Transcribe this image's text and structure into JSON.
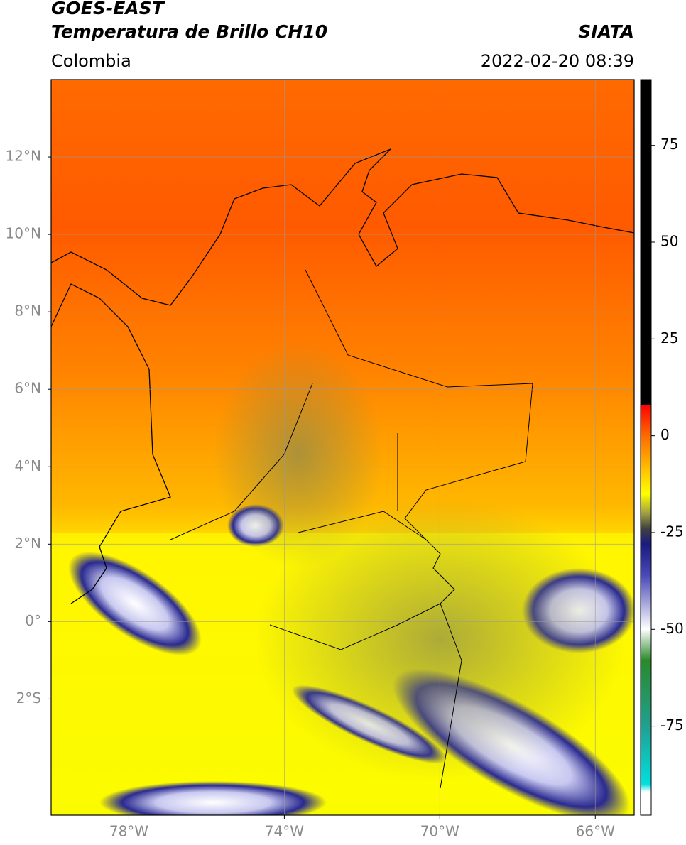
{
  "header": {
    "title": "GOES-EAST",
    "subtitle": "Temperatura de Brillo CH10",
    "source": "SIATA",
    "region": "Colombia",
    "datetime": "2022-02-20 08:39"
  },
  "map": {
    "lonlim": [
      -80,
      -65
    ],
    "latlim": [
      -5,
      14
    ],
    "xticks": [
      {
        "value": -78,
        "label": "78°W"
      },
      {
        "value": -74,
        "label": "74°W"
      },
      {
        "value": -70,
        "label": "70°W"
      },
      {
        "value": -66,
        "label": "66°W"
      }
    ],
    "yticks": [
      {
        "value": 12,
        "label": "12°N"
      },
      {
        "value": 10,
        "label": "10°N"
      },
      {
        "value": 8,
        "label": "8°N"
      },
      {
        "value": 6,
        "label": "6°N"
      },
      {
        "value": 4,
        "label": "4°N"
      },
      {
        "value": 2,
        "label": "2°N"
      },
      {
        "value": 0,
        "label": "0°"
      },
      {
        "value": -2,
        "label": "2°S"
      }
    ],
    "grid": true
  },
  "colorbar": {
    "lim": [
      -98,
      92
    ],
    "ticks": [
      75,
      50,
      25,
      0,
      -25,
      -50,
      -75
    ],
    "stops": [
      [
        92,
        "#000000"
      ],
      [
        8,
        "#000000"
      ],
      [
        8,
        "#ff0000"
      ],
      [
        0,
        "#ff6a00"
      ],
      [
        -15,
        "#ffff00"
      ],
      [
        -20,
        "#a0a040"
      ],
      [
        -24,
        "#404040"
      ],
      [
        -28,
        "#1a1a80"
      ],
      [
        -36,
        "#4848b8"
      ],
      [
        -50,
        "#ffffff"
      ],
      [
        -58,
        "#2a8a2a"
      ],
      [
        -75,
        "#20a090"
      ],
      [
        -90,
        "#00e0e0"
      ],
      [
        -92,
        "#ffffff"
      ],
      [
        -98,
        "#ffffff"
      ]
    ]
  }
}
